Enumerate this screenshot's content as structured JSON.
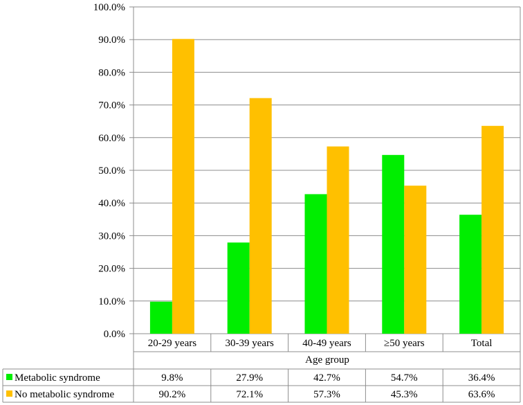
{
  "chart_data": {
    "type": "bar",
    "title": "",
    "xlabel": "Age group",
    "ylabel": "",
    "ylim": [
      0,
      100
    ],
    "y_ticks": [
      "0.0%",
      "10.0%",
      "20.0%",
      "30.0%",
      "40.0%",
      "50.0%",
      "60.0%",
      "70.0%",
      "80.0%",
      "90.0%",
      "100.0%"
    ],
    "grid": true,
    "legend_position": "data-table-left",
    "categories": [
      "20-29 years",
      "30-39 years",
      "40-49 years",
      "≥50 years",
      "Total"
    ],
    "series": [
      {
        "name": "Metabolic syndrome",
        "color": "#00ee00",
        "values": [
          9.8,
          27.9,
          42.7,
          54.7,
          36.4
        ],
        "labels": [
          "9.8%",
          "27.9%",
          "42.7%",
          "54.7%",
          "36.4%"
        ]
      },
      {
        "name": "No metabolic syndrome",
        "color": "#ffc000",
        "values": [
          90.2,
          72.1,
          57.3,
          45.3,
          63.6
        ],
        "labels": [
          "90.2%",
          "72.1%",
          "57.3%",
          "45.3%",
          "63.6%"
        ]
      }
    ]
  }
}
